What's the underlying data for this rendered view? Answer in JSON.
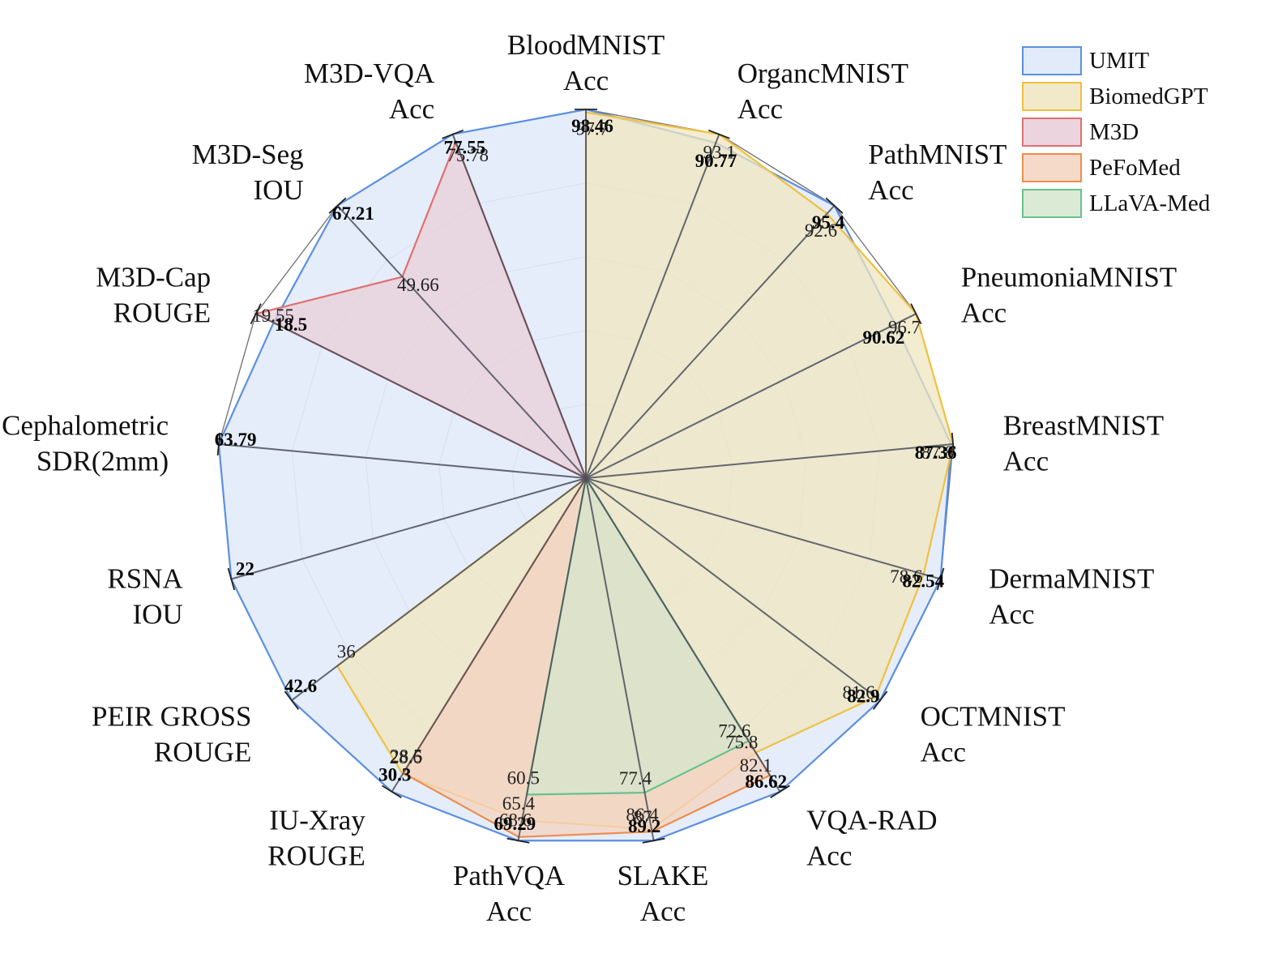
{
  "chart_data": {
    "type": "radar",
    "axes": [
      {
        "name": "BloodMNIST",
        "metric": "Acc",
        "max": 98.46
      },
      {
        "name": "OrgancMNIST",
        "metric": "Acc",
        "max": 93.1
      },
      {
        "name": "PathMNIST",
        "metric": "Acc",
        "max": 95.4
      },
      {
        "name": "PneumoniaMNIST",
        "metric": "Acc",
        "max": 96.7
      },
      {
        "name": "BreastMNIST",
        "metric": "Acc",
        "max": 87.8
      },
      {
        "name": "DermaMNIST",
        "metric": "Acc",
        "max": 82.54
      },
      {
        "name": "OCTMNIST",
        "metric": "Acc",
        "max": 82.9
      },
      {
        "name": "VQA-RAD",
        "metric": "Acc",
        "max": 86.62
      },
      {
        "name": "SLAKE",
        "metric": "Acc",
        "max": 89.2
      },
      {
        "name": "PathVQA",
        "metric": "Acc",
        "max": 69.29
      },
      {
        "name": "IU-Xray",
        "metric": "ROUGE",
        "max": 30.3
      },
      {
        "name": "PEIR GROSS",
        "metric": "ROUGE",
        "max": 42.6
      },
      {
        "name": "RSNA",
        "metric": "IOU",
        "max": 22
      },
      {
        "name": "Cephalometric",
        "metric": "SDR(2mm)",
        "max": 63.79
      },
      {
        "name": "M3D-Cap",
        "metric": "ROUGE",
        "max": 19.55
      },
      {
        "name": "M3D-Seg",
        "metric": "IOU",
        "max": 67.21
      },
      {
        "name": "M3D-VQA",
        "metric": "Acc",
        "max": 77.55
      }
    ],
    "series": [
      {
        "name": "UMIT",
        "stroke": "#5b8fe0",
        "fill": "#dce7f8",
        "values": [
          98.46,
          90.77,
          95.4,
          90.62,
          87.36,
          82.54,
          82.9,
          86.62,
          89.2,
          69.29,
          30.3,
          42.6,
          22,
          63.79,
          18.5,
          67.21,
          77.55
        ]
      },
      {
        "name": "BiomedGPT",
        "stroke": "#f0c040",
        "fill": "#efe5bf",
        "values": [
          97.7,
          93.1,
          92.6,
          96.7,
          87.8,
          78.6,
          81.6,
          75.8,
          86.4,
          65.4,
          28.6,
          36,
          null,
          null,
          null,
          null,
          null
        ]
      },
      {
        "name": "M3D",
        "stroke": "#e07070",
        "fill": "#e8cdd7",
        "values": [
          null,
          null,
          null,
          null,
          null,
          null,
          null,
          null,
          null,
          null,
          null,
          null,
          null,
          null,
          19.55,
          49.66,
          75.78
        ]
      },
      {
        "name": "PeFoMed",
        "stroke": "#ee8d4d",
        "fill": "#f3d3c0",
        "values": [
          null,
          null,
          null,
          null,
          null,
          null,
          null,
          82.1,
          87,
          68.6,
          28.5,
          null,
          null,
          null,
          null,
          null,
          null
        ]
      },
      {
        "name": "LLaVA-Med",
        "stroke": "#66c28c",
        "fill": "#d5e6cd",
        "values": [
          null,
          null,
          null,
          null,
          null,
          null,
          null,
          72.6,
          77.4,
          60.5,
          null,
          null,
          null,
          null,
          null,
          null,
          null
        ]
      }
    ],
    "value_labels": [
      {
        "text": "98.46",
        "bold": true,
        "axis": 0
      },
      {
        "text": "97.7",
        "bold": false,
        "axis": 0
      },
      {
        "text": "93.1",
        "bold": false,
        "axis": 1
      },
      {
        "text": "90.77",
        "bold": true,
        "axis": 1
      },
      {
        "text": "95.4",
        "bold": true,
        "axis": 2
      },
      {
        "text": "92.6",
        "bold": false,
        "axis": 2
      },
      {
        "text": "96.7",
        "bold": false,
        "axis": 3
      },
      {
        "text": "90.62",
        "bold": true,
        "axis": 3
      },
      {
        "text": "87.8",
        "bold": false,
        "axis": 4
      },
      {
        "text": "87.36",
        "bold": true,
        "axis": 4
      },
      {
        "text": "78.6",
        "bold": false,
        "axis": 5
      },
      {
        "text": "82.54",
        "bold": true,
        "axis": 5
      },
      {
        "text": "81.6",
        "bold": false,
        "axis": 6
      },
      {
        "text": "82.9",
        "bold": true,
        "axis": 6
      },
      {
        "text": "86.62",
        "bold": true,
        "axis": 7
      },
      {
        "text": "82.1",
        "bold": false,
        "axis": 7
      },
      {
        "text": "75.8",
        "bold": false,
        "axis": 7
      },
      {
        "text": "72.6",
        "bold": false,
        "axis": 7
      },
      {
        "text": "89.2",
        "bold": true,
        "axis": 8
      },
      {
        "text": "87",
        "bold": false,
        "axis": 8
      },
      {
        "text": "86.4",
        "bold": false,
        "axis": 8
      },
      {
        "text": "77.4",
        "bold": false,
        "axis": 8
      },
      {
        "text": "69.29",
        "bold": true,
        "axis": 9
      },
      {
        "text": "68.6",
        "bold": false,
        "axis": 9
      },
      {
        "text": "65.4",
        "bold": false,
        "axis": 9
      },
      {
        "text": "60.5",
        "bold": false,
        "axis": 9
      },
      {
        "text": "30.3",
        "bold": true,
        "axis": 10
      },
      {
        "text": "28.6",
        "bold": false,
        "axis": 10
      },
      {
        "text": "28.5",
        "bold": false,
        "axis": 10
      },
      {
        "text": "42.6",
        "bold": true,
        "axis": 11
      },
      {
        "text": "36",
        "bold": false,
        "axis": 11
      },
      {
        "text": "22",
        "bold": true,
        "axis": 12
      },
      {
        "text": "63.79",
        "bold": true,
        "axis": 13
      },
      {
        "text": "19.55",
        "bold": false,
        "axis": 14
      },
      {
        "text": "18.5",
        "bold": true,
        "axis": 14
      },
      {
        "text": "67.21",
        "bold": true,
        "axis": 15
      },
      {
        "text": "49.66",
        "bold": false,
        "axis": 15
      },
      {
        "text": "77.55",
        "bold": true,
        "axis": 16
      },
      {
        "text": "75.78",
        "bold": false,
        "axis": 16
      }
    ],
    "grid_levels": 5,
    "legend_position": "top-right"
  }
}
